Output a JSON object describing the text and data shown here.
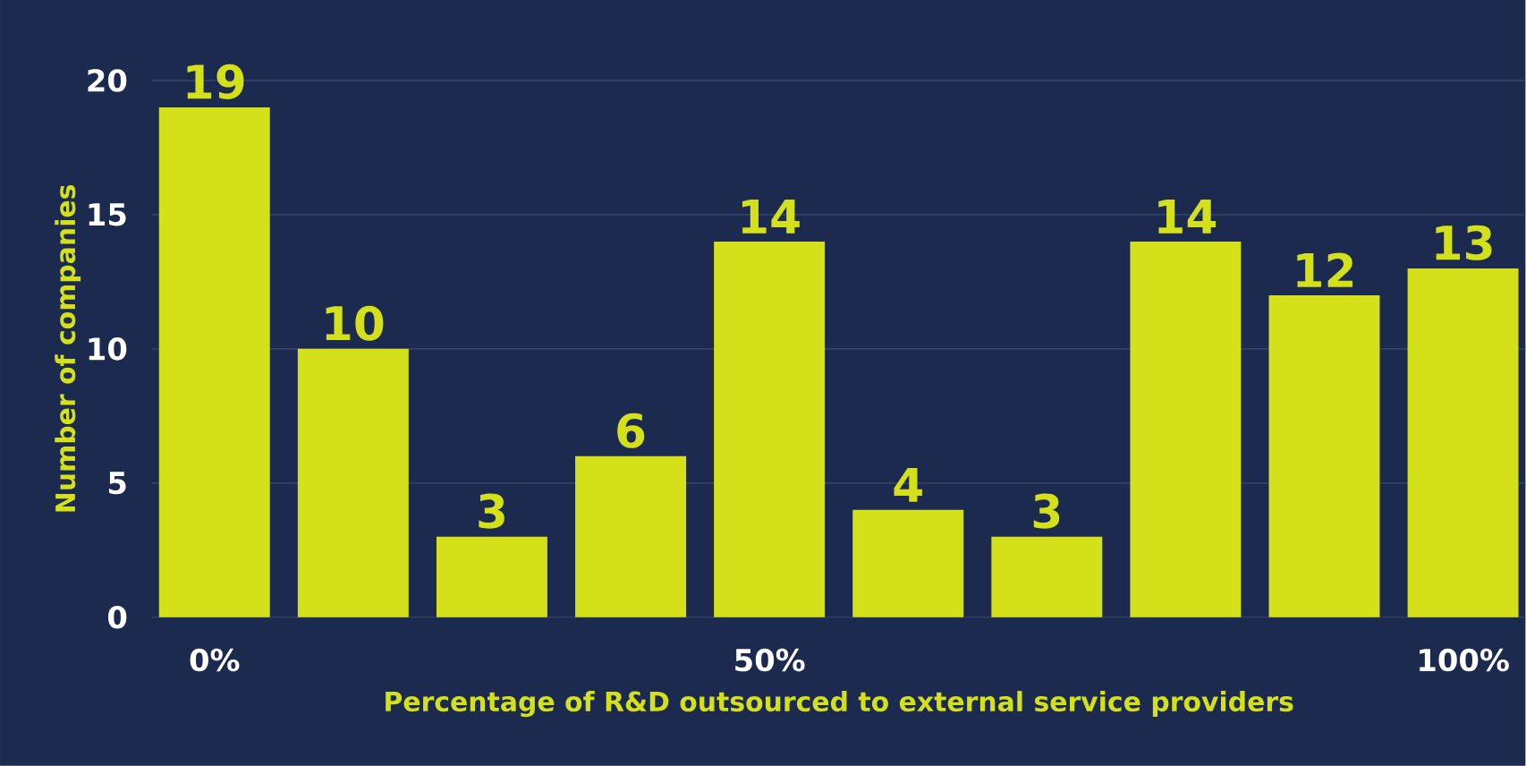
{
  "chart_data": {
    "type": "bar",
    "xlabel": "Percentage of R&D outsourced to external service providers",
    "ylabel": "Number of companies",
    "categories": [
      "0%",
      null,
      null,
      null,
      "50%",
      null,
      null,
      null,
      null,
      "100%"
    ],
    "values": [
      19,
      10,
      3,
      6,
      14,
      4,
      3,
      14,
      12,
      13
    ],
    "color": "#d4e01a",
    "ylim": [
      0,
      20
    ],
    "yticks": [
      0,
      5,
      10,
      15,
      20
    ],
    "grid": "y",
    "data_labels": true
  }
}
